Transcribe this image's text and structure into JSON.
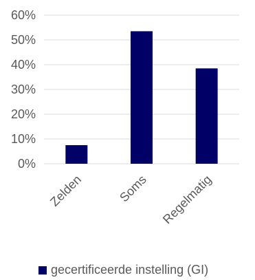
{
  "chart_data": {
    "type": "bar",
    "categories": [
      "Zelden",
      "Soms",
      "Regelmatig"
    ],
    "series": [
      {
        "name": "gecertificeerde instelling (GI)",
        "values": [
          7.5,
          53.5,
          38.5
        ]
      }
    ],
    "ylim": [
      0,
      60
    ],
    "yticks": [
      "0%",
      "10%",
      "20%",
      "30%",
      "40%",
      "50%",
      "60%"
    ],
    "title": "",
    "xlabel": "",
    "ylabel": "",
    "grid": true,
    "legend_position": "bottom",
    "bar_color": "#000066",
    "grid_color": "#d9d9d9",
    "text_color": "#595959"
  },
  "legend": {
    "label": "gecertificeerde instelling (GI)"
  }
}
